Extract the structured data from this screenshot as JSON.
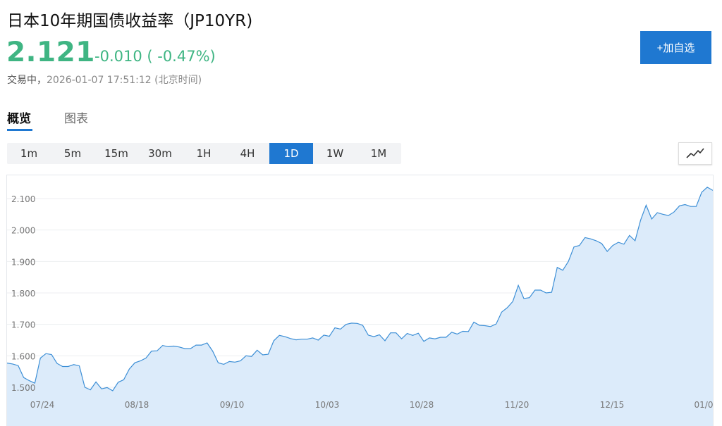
{
  "header": {
    "title": "日本10年期国债收益率（JP10YR)",
    "price": "2.121",
    "change": "-0.010 ( -0.47%)",
    "status": "交易中，",
    "timestamp": "2026-01-07 17:51:12 (北京时间)",
    "add_label": "+加自选"
  },
  "tabs": [
    {
      "label": "概览",
      "active": true
    },
    {
      "label": "图表",
      "active": false
    }
  ],
  "intervals": [
    {
      "label": "1m",
      "active": false
    },
    {
      "label": "5m",
      "active": false
    },
    {
      "label": "15m",
      "active": false
    },
    {
      "label": "30m",
      "active": false
    },
    {
      "label": "1H",
      "active": false
    },
    {
      "label": "4H",
      "active": false
    },
    {
      "label": "1D",
      "active": true
    },
    {
      "label": "1W",
      "active": false
    },
    {
      "label": "1M",
      "active": false
    }
  ],
  "chart_type_icon": "line-chart-icon",
  "colors": {
    "up_green": "#3fb583",
    "accent_blue": "#1f78d1",
    "line": "#3d8fd6",
    "area": "#dcebfa"
  },
  "chart_data": {
    "type": "area",
    "x_tick_labels": [
      "07/24",
      "08/18",
      "09/10",
      "10/03",
      "10/28",
      "11/20",
      "12/15",
      "01/0"
    ],
    "y_tick_labels": [
      "1.500",
      "1.600",
      "1.700",
      "1.800",
      "1.900",
      "2.000",
      "2.100"
    ],
    "ylim": [
      1.46,
      2.15
    ],
    "y_ticks": [
      1.5,
      1.6,
      1.7,
      1.8,
      1.9,
      2.0,
      2.1
    ],
    "grid": true,
    "values": [
      1.577,
      1.574,
      1.569,
      1.531,
      1.521,
      1.513,
      1.593,
      1.607,
      1.604,
      1.576,
      1.566,
      1.566,
      1.572,
      1.568,
      1.5,
      1.492,
      1.517,
      1.495,
      1.499,
      1.489,
      1.516,
      1.524,
      1.558,
      1.578,
      1.584,
      1.593,
      1.615,
      1.616,
      1.633,
      1.629,
      1.631,
      1.628,
      1.623,
      1.623,
      1.634,
      1.634,
      1.641,
      1.615,
      1.578,
      1.573,
      1.582,
      1.58,
      1.584,
      1.6,
      1.598,
      1.618,
      1.603,
      1.605,
      1.648,
      1.665,
      1.661,
      1.655,
      1.651,
      1.653,
      1.653,
      1.657,
      1.65,
      1.666,
      1.662,
      1.689,
      1.685,
      1.7,
      1.704,
      1.703,
      1.697,
      1.666,
      1.661,
      1.667,
      1.648,
      1.673,
      1.673,
      1.654,
      1.671,
      1.665,
      1.672,
      1.646,
      1.657,
      1.654,
      1.659,
      1.659,
      1.675,
      1.669,
      1.678,
      1.677,
      1.707,
      1.697,
      1.696,
      1.693,
      1.701,
      1.739,
      1.753,
      1.773,
      1.824,
      1.782,
      1.785,
      1.809,
      1.809,
      1.8,
      1.802,
      1.881,
      1.872,
      1.9,
      1.946,
      1.951,
      1.976,
      1.972,
      1.966,
      1.957,
      1.932,
      1.951,
      1.961,
      1.955,
      1.983,
      1.966,
      2.031,
      2.079,
      2.035,
      2.055,
      2.05,
      2.046,
      2.057,
      2.077,
      2.081,
      2.075,
      2.075,
      2.12,
      2.136,
      2.126
    ]
  }
}
